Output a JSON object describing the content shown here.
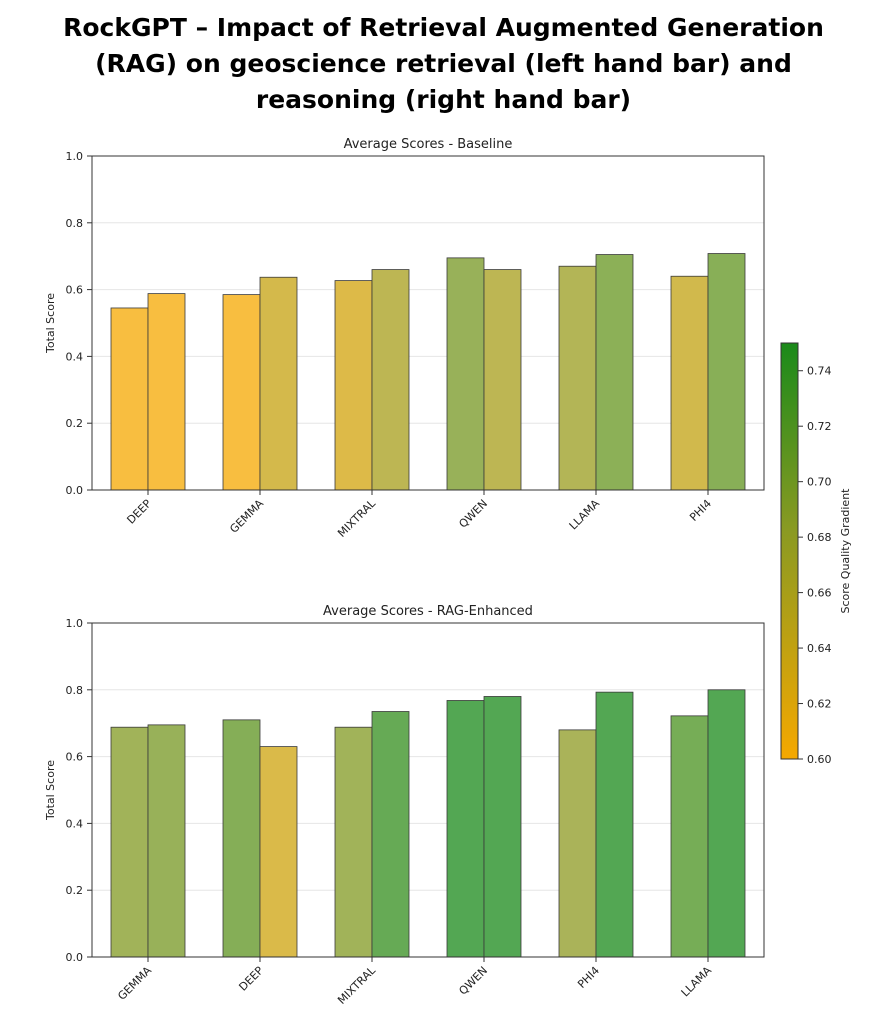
{
  "slide_title": "RockGPT – Impact of Retrieval Augmented Generation\n(RAG) on geoscience retrieval (left hand bar) and\nreasoning (right hand bar)",
  "chart_data": [
    {
      "type": "bar",
      "title": "Average Scores - Baseline",
      "xlabel": "",
      "ylabel": "Total Score",
      "ylim": [
        0,
        1.0
      ],
      "yticks": [
        "0.0",
        "0.2",
        "0.4",
        "0.6",
        "0.8",
        "1.0"
      ],
      "categories": [
        "DEEP",
        "GEMMA",
        "MIXTRAL",
        "QWEN",
        "LLAMA",
        "PHI4"
      ],
      "series": [
        {
          "values": [
            0.545,
            0.585,
            0.627,
            0.695,
            0.67,
            0.64
          ]
        },
        {
          "values": [
            0.588,
            0.637,
            0.66,
            0.66,
            0.705,
            0.708
          ]
        }
      ],
      "grid": "horizontal",
      "legend": "none"
    },
    {
      "type": "bar",
      "title": "Average Scores - RAG-Enhanced",
      "xlabel": "",
      "ylabel": "Total Score",
      "ylim": [
        0,
        1.0
      ],
      "yticks": [
        "0.0",
        "0.2",
        "0.4",
        "0.6",
        "0.8",
        "1.0"
      ],
      "categories": [
        "GEMMA",
        "DEEP",
        "MIXTRAL",
        "QWEN",
        "PHI4",
        "LLAMA"
      ],
      "series": [
        {
          "values": [
            0.688,
            0.71,
            0.688,
            0.768,
            0.68,
            0.722
          ]
        },
        {
          "values": [
            0.695,
            0.63,
            0.735,
            0.78,
            0.793,
            0.8
          ]
        }
      ],
      "grid": "horizontal",
      "legend": "none"
    }
  ],
  "colorbar": {
    "label": "Score Quality Gradient",
    "range": [
      0.6,
      0.75
    ],
    "ticks": [
      "0.60",
      "0.62",
      "0.64",
      "0.66",
      "0.68",
      "0.70",
      "0.72",
      "0.74"
    ],
    "colors": [
      "#f5a800",
      "#1a8a1a"
    ],
    "placement": "right"
  }
}
